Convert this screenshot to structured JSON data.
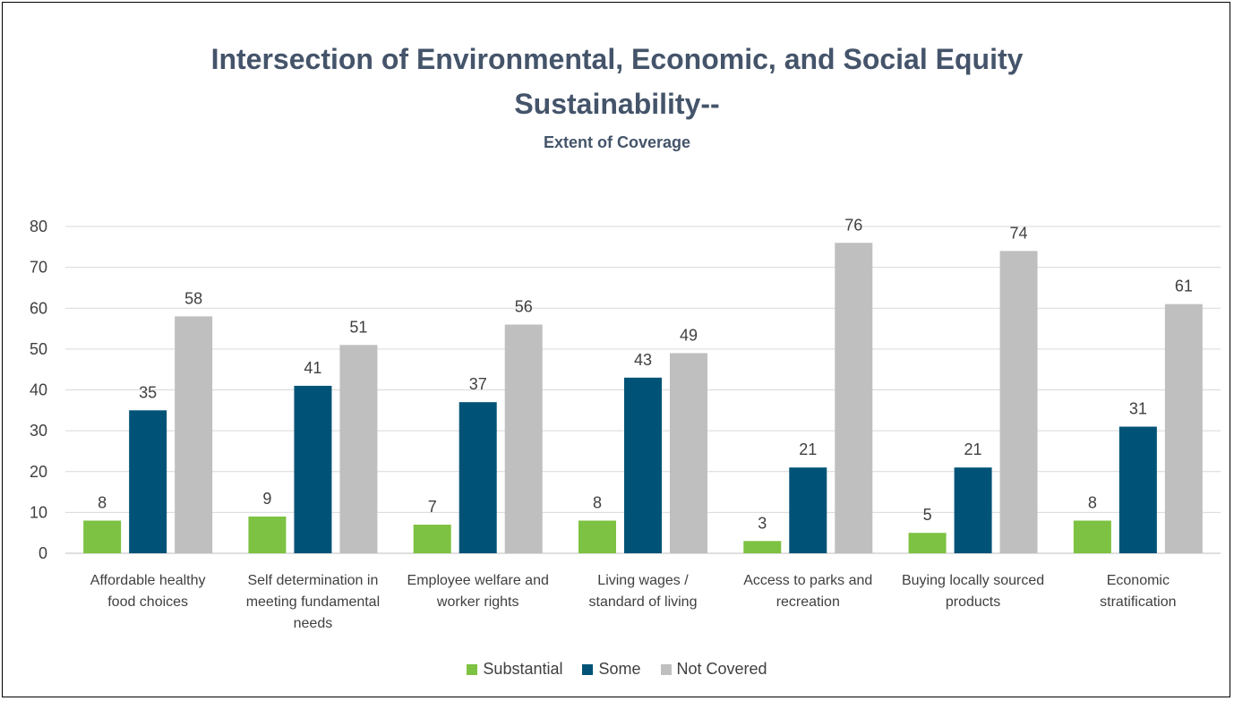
{
  "colors": {
    "title": "#44546A",
    "text": "#404040",
    "grid": "#D9D9D9",
    "axis": "#BFBFBF"
  },
  "chart_data": {
    "type": "bar",
    "title": "Intersection of Environmental, Economic, and Social Equity\nSustainability--",
    "subtitle": "Extent of Coverage",
    "categories": [
      "Affordable healthy food choices",
      "Self determination in meeting fundamental needs",
      "Employee welfare and worker rights",
      "Living wages / standard of living",
      "Access to parks and recreation",
      "Buying locally sourced products",
      "Economic stratification"
    ],
    "series": [
      {
        "name": "Substantial",
        "color": "#7DC242",
        "values": [
          8,
          9,
          7,
          8,
          3,
          5,
          8
        ]
      },
      {
        "name": "Some",
        "color": "#005377",
        "values": [
          35,
          41,
          37,
          43,
          21,
          21,
          31
        ]
      },
      {
        "name": "Not Covered",
        "color": "#BFBFBF",
        "values": [
          58,
          51,
          56,
          49,
          76,
          74,
          61
        ]
      }
    ],
    "yticks": [
      0,
      10,
      20,
      30,
      40,
      50,
      60,
      70,
      80
    ],
    "ylim": [
      0,
      80
    ],
    "grid": true,
    "data_labels": true,
    "legend_position": "bottom"
  }
}
